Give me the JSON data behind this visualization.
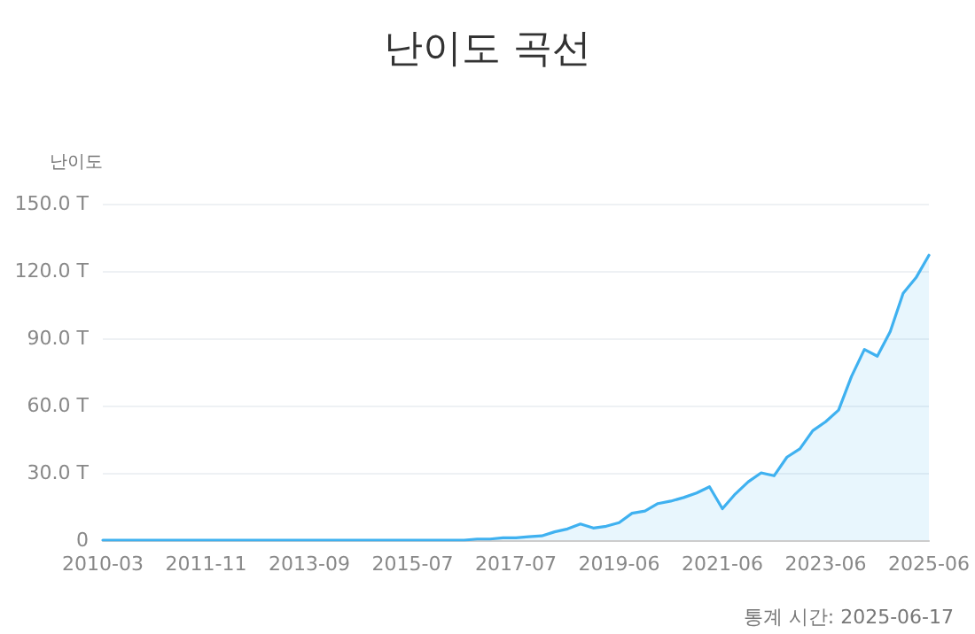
{
  "chart_data": {
    "type": "area",
    "title": "난이도 곡선",
    "ylabel": "난이도",
    "annotations": [
      "통계 시간: 2025-06-17"
    ],
    "categories": [
      "2010-03",
      null,
      null,
      null,
      null,
      null,
      null,
      null,
      "2011-11",
      null,
      null,
      null,
      null,
      null,
      null,
      null,
      "2013-09",
      null,
      null,
      null,
      null,
      null,
      null,
      null,
      "2015-07",
      null,
      null,
      null,
      null,
      null,
      null,
      null,
      "2017-07",
      null,
      null,
      null,
      null,
      null,
      null,
      null,
      "2019-06",
      null,
      null,
      null,
      null,
      null,
      null,
      null,
      "2021-06",
      null,
      null,
      null,
      null,
      null,
      null,
      null,
      "2023-06",
      null,
      null,
      null,
      null,
      null,
      null,
      null,
      "2025-06"
    ],
    "series": [
      {
        "color": "#3fb1f0",
        "values": [
          0,
          0,
          0,
          0,
          0,
          0,
          0,
          0,
          0,
          0,
          0,
          0,
          0,
          0,
          0,
          0,
          0,
          0,
          0,
          0,
          0,
          0,
          0,
          0,
          0,
          0,
          0,
          0,
          0,
          0.5,
          0.5,
          1,
          1,
          1.5,
          1.9,
          3.7,
          5,
          7.2,
          5.4,
          6.2,
          7.8,
          12,
          13,
          16.3,
          17.4,
          19,
          21,
          23.8,
          14,
          20.6,
          26,
          30,
          28.7,
          37,
          40.7,
          48.8,
          52.8,
          58,
          73,
          85,
          82,
          93,
          110,
          117,
          127
        ]
      }
    ],
    "ylim": [
      0,
      150
    ],
    "yticks": [
      {
        "value": 0,
        "label": "0"
      },
      {
        "value": 30,
        "label": "30.0 T"
      },
      {
        "value": 60,
        "label": "60.0 T"
      },
      {
        "value": 90,
        "label": "90.0 T"
      },
      {
        "value": 120,
        "label": "120.0 T"
      },
      {
        "value": 150,
        "label": "150.0 T"
      }
    ],
    "grid": "y",
    "marker": "none",
    "line_style": "solid"
  }
}
